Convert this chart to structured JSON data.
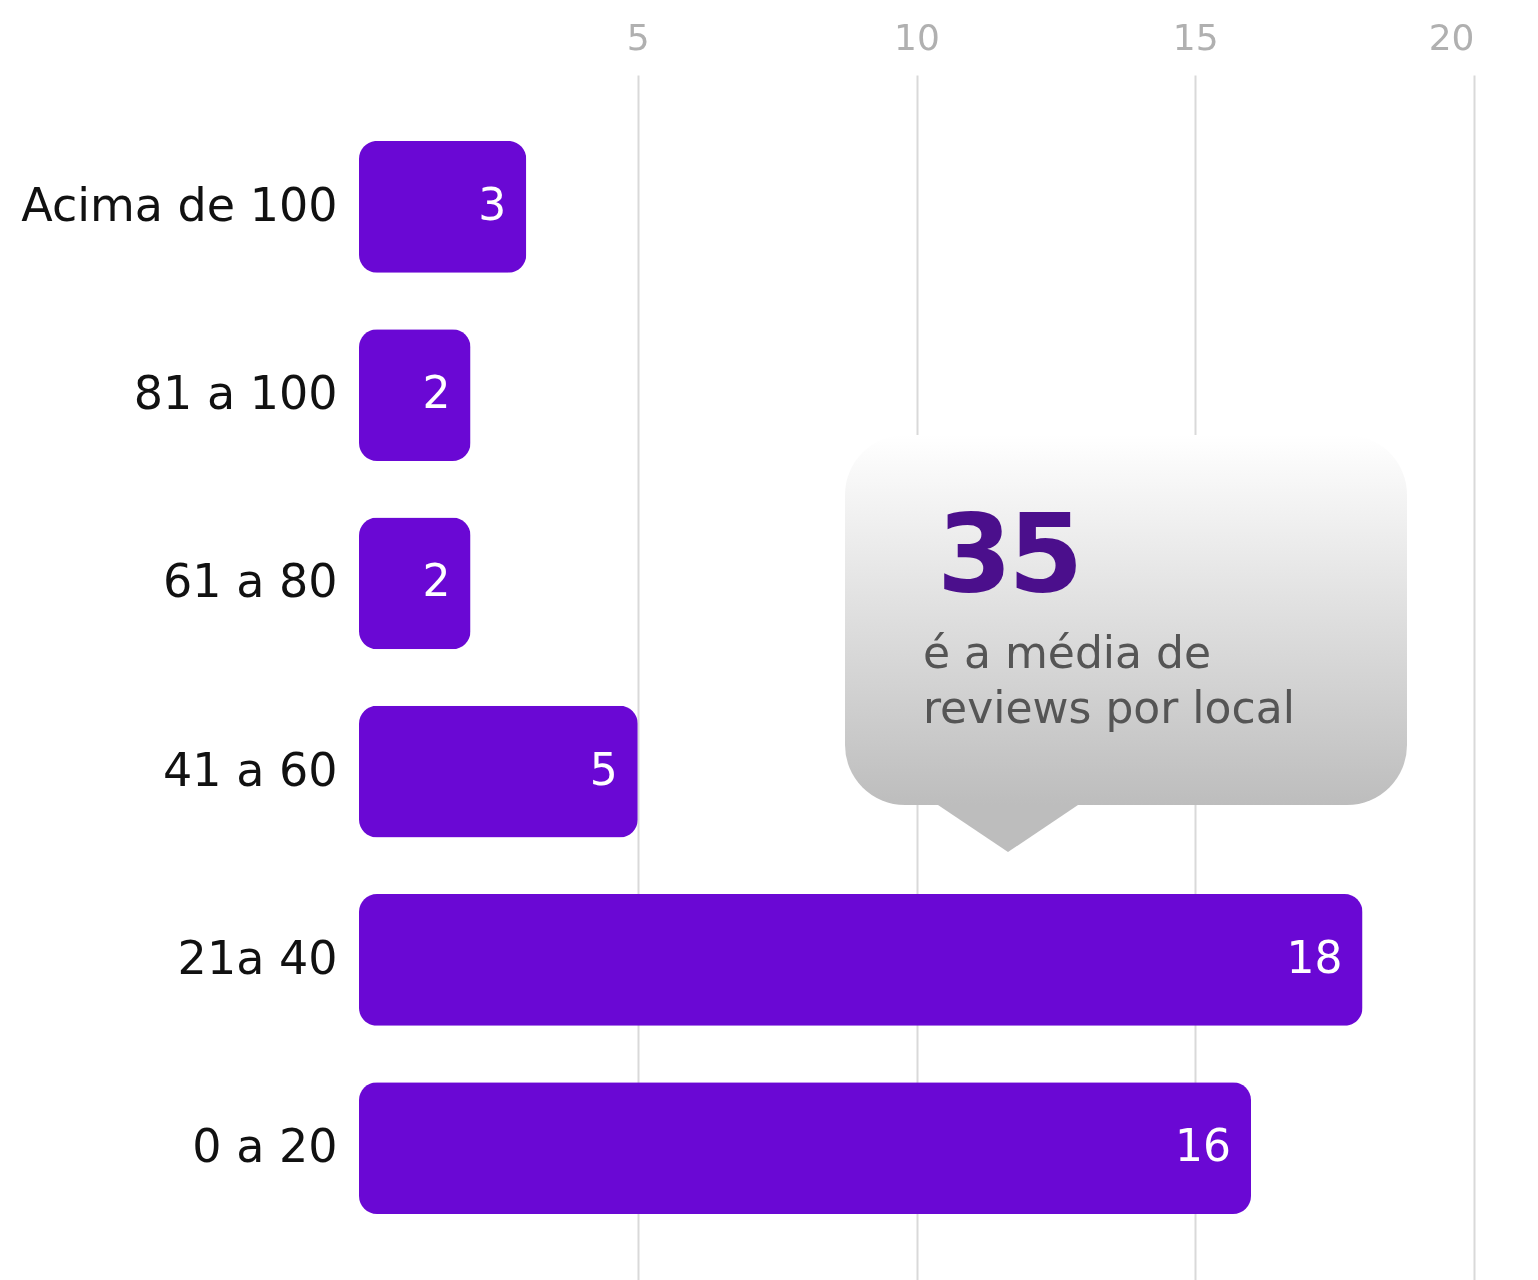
{
  "chart_data": {
    "type": "bar",
    "orientation": "horizontal",
    "categories": [
      "Acima de 100",
      "81 a 100",
      "61 a 80",
      "41 a 60",
      "21a 40",
      "0 a 20"
    ],
    "values": [
      3,
      2,
      2,
      5,
      18,
      16
    ],
    "color": "#6a08d4",
    "xlim": [
      0,
      20
    ],
    "xticks": [
      5,
      10,
      15,
      20
    ],
    "grid": "x",
    "data_labels": true,
    "annotations": [
      "35",
      "é a média de reviews por local"
    ]
  }
}
